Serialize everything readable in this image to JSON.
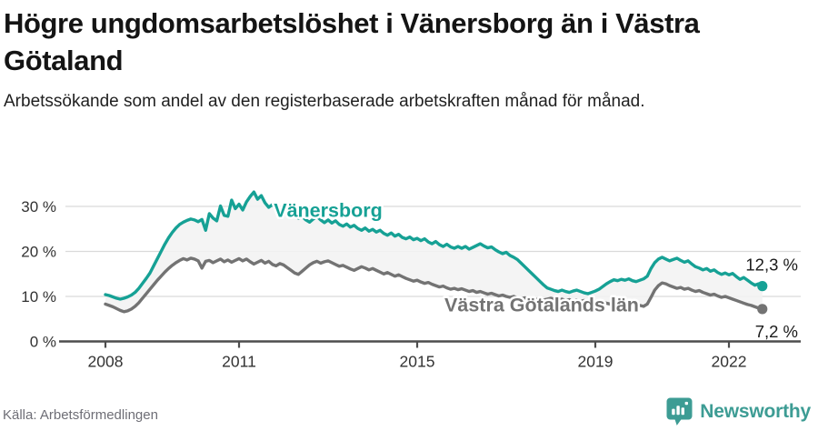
{
  "header": {
    "title": "Högre ungdomsarbetslöshet i Vänersborg än i Västra Götaland",
    "subtitle": "Arbetssökande som andel av den registerbaserade arbetskraften månad för månad."
  },
  "footer": {
    "source": "Källa: Arbetsförmedlingen",
    "brand": "Newsworthy"
  },
  "colors": {
    "accent_teal": "#16a195",
    "line_gray": "#737373",
    "fill_between": "#f2f2f2",
    "grid": "#dadada",
    "axis": "#4d4d4d",
    "tick_text": "#333333",
    "value_label": "#1a1a1a",
    "brand_teal": "#3d9c94",
    "source_gray": "#6e6e76"
  },
  "chart_data": {
    "type": "line",
    "title": "Högre ungdomsarbetslöshet i Vänersborg än i Västra Götaland",
    "xlabel": "",
    "ylabel": "Arbetssökande som andel av den registerbaserade arbetskraften",
    "x_unit": "månad",
    "x_start_year": 2008,
    "x_end": "2022-10",
    "points_per_year": 12,
    "x_ticks": [
      2008,
      2011,
      2015,
      2019,
      2022
    ],
    "y_ticks": [
      0,
      10,
      20,
      30
    ],
    "y_tick_suffix": " %",
    "ylim": [
      0,
      34.5
    ],
    "grid": true,
    "legend_position": "inline-labels",
    "area_fill_between_series": true,
    "series": [
      {
        "name": "Vänersborg",
        "color": "#16a195",
        "end_label": "12,3 %",
        "end_value": 12.3,
        "label_pos": {
          "x": 361,
          "y": 233
        },
        "end_label_offset": -17,
        "values": [
          10.4,
          10.2,
          9.9,
          9.6,
          9.4,
          9.6,
          9.9,
          10.3,
          10.9,
          11.8,
          12.9,
          14.0,
          15.2,
          16.8,
          18.4,
          20.0,
          21.6,
          23.0,
          24.2,
          25.2,
          26.0,
          26.5,
          26.9,
          27.2,
          27.0,
          26.6,
          27.1,
          24.7,
          28.4,
          27.4,
          26.8,
          30.1,
          28.0,
          27.8,
          31.4,
          29.5,
          30.5,
          29.2,
          31.0,
          32.2,
          33.2,
          31.6,
          32.4,
          30.8,
          29.8,
          30.4,
          29.6,
          28.8,
          29.4,
          28.6,
          29.0,
          28.0,
          27.4,
          27.8,
          27.0,
          26.5,
          27.2,
          27.8,
          27.0,
          26.4,
          27.0,
          26.3,
          26.8,
          26.0,
          25.6,
          26.1,
          25.4,
          25.8,
          25.1,
          24.7,
          25.2,
          24.5,
          24.9,
          24.3,
          24.7,
          24.0,
          23.6,
          24.1,
          23.4,
          23.8,
          23.1,
          22.8,
          23.2,
          22.6,
          22.9,
          22.4,
          22.8,
          22.1,
          21.7,
          22.2,
          21.5,
          21.1,
          21.6,
          21.0,
          20.7,
          21.1,
          20.7,
          21.1,
          20.5,
          20.9,
          21.3,
          21.7,
          21.2,
          20.8,
          21.0,
          20.4,
          19.9,
          19.5,
          19.8,
          19.1,
          18.7,
          18.2,
          17.4,
          16.6,
          15.8,
          15.0,
          14.2,
          13.4,
          12.6,
          11.9,
          11.6,
          11.3,
          11.1,
          11.4,
          11.1,
          10.9,
          11.2,
          11.4,
          11.1,
          10.8,
          10.6,
          10.9,
          11.2,
          11.6,
          12.2,
          12.8,
          13.3,
          13.7,
          13.5,
          13.8,
          13.6,
          13.9,
          13.5,
          13.3,
          13.6,
          13.9,
          14.5,
          16.2,
          17.5,
          18.3,
          18.7,
          18.3,
          17.9,
          18.2,
          18.5,
          18.0,
          17.6,
          17.9,
          17.2,
          16.6,
          16.3,
          15.9,
          16.2,
          15.6,
          15.9,
          15.3,
          14.9,
          15.2,
          14.8,
          15.1,
          14.4,
          13.8,
          14.2,
          13.6,
          13.0,
          12.5,
          12.8,
          12.3
        ]
      },
      {
        "name": "Västra Götalands län",
        "color": "#737373",
        "end_label": "7,2 %",
        "end_value": 7.2,
        "label_pos": {
          "x": 596,
          "y": 337
        },
        "end_label_offset": 31,
        "values": [
          8.3,
          8.0,
          7.7,
          7.3,
          6.9,
          6.6,
          6.8,
          7.2,
          7.8,
          8.6,
          9.6,
          10.6,
          11.6,
          12.6,
          13.6,
          14.5,
          15.4,
          16.2,
          16.9,
          17.5,
          18.0,
          18.4,
          18.1,
          18.5,
          18.3,
          17.9,
          16.3,
          17.8,
          18.0,
          17.5,
          17.9,
          18.3,
          17.7,
          18.1,
          17.6,
          18.0,
          18.4,
          17.9,
          18.3,
          17.7,
          17.2,
          17.6,
          18.0,
          17.4,
          17.8,
          17.1,
          16.8,
          17.3,
          17.0,
          16.4,
          15.8,
          15.2,
          14.9,
          15.6,
          16.3,
          17.0,
          17.5,
          17.8,
          17.4,
          17.7,
          17.9,
          17.5,
          17.1,
          16.7,
          16.9,
          16.5,
          16.1,
          15.8,
          16.2,
          16.6,
          16.3,
          15.9,
          16.2,
          15.8,
          15.4,
          15.0,
          15.3,
          14.9,
          14.5,
          14.8,
          14.4,
          14.0,
          13.7,
          13.4,
          13.6,
          13.2,
          12.9,
          13.1,
          12.7,
          12.4,
          12.1,
          12.3,
          11.9,
          11.6,
          11.8,
          11.5,
          11.7,
          11.4,
          11.1,
          11.3,
          10.9,
          11.1,
          10.8,
          10.5,
          10.7,
          10.4,
          10.1,
          10.3,
          10.0,
          9.8,
          10.0,
          9.7,
          9.5,
          9.7,
          9.4,
          9.6,
          9.3,
          9.5,
          9.2,
          9.4,
          9.6,
          9.4,
          9.2,
          9.4,
          9.1,
          9.3,
          9.0,
          9.2,
          8.9,
          9.1,
          8.8,
          9.0,
          8.9,
          8.7,
          8.8,
          8.5,
          8.3,
          8.5,
          8.2,
          8.4,
          8.1,
          8.3,
          8.0,
          8.1,
          8.0,
          7.8,
          8.3,
          9.8,
          11.4,
          12.4,
          13.0,
          12.8,
          12.4,
          12.1,
          11.8,
          12.0,
          11.6,
          11.8,
          11.4,
          11.1,
          11.3,
          10.9,
          10.6,
          10.3,
          10.5,
          10.1,
          9.8,
          10.0,
          9.7,
          9.4,
          9.1,
          8.8,
          8.5,
          8.2,
          8.0,
          7.7,
          7.4,
          7.2
        ]
      }
    ]
  }
}
